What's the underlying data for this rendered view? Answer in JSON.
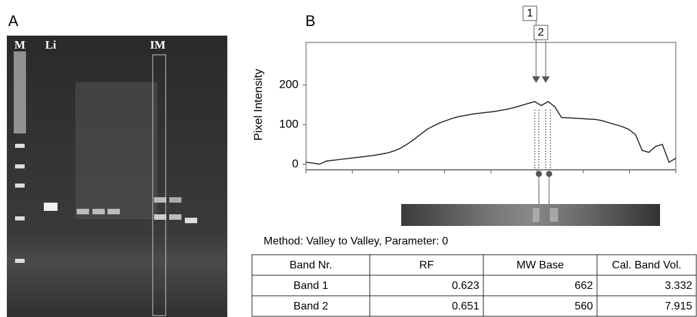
{
  "panel_a": {
    "label": "A",
    "lanes": [
      "M",
      "Li",
      "IM"
    ]
  },
  "chart_data": {
    "type": "line",
    "panel_label": "B",
    "y_label": "Pixel Intensity",
    "annotations": [
      "1",
      "2"
    ],
    "values": [
      5,
      3,
      0,
      8,
      10,
      12,
      14,
      16,
      18,
      20,
      22,
      25,
      28,
      33,
      40,
      50,
      62,
      75,
      88,
      97,
      105,
      111,
      117,
      121,
      124,
      127,
      129,
      131,
      133,
      136,
      139,
      143,
      148,
      153,
      158,
      148,
      158,
      145,
      118,
      117,
      116,
      115,
      114,
      113,
      110,
      105,
      100,
      95,
      88,
      75,
      35,
      30,
      45,
      50,
      5,
      15
    ],
    "color": "#222222",
    "ylim": [
      -14,
      307
    ],
    "yticks": [
      0,
      100,
      200
    ]
  },
  "method": "Method:  Valley to Valley, Parameter: 0",
  "table": {
    "header": [
      "Band Nr.",
      "RF",
      "MW Base",
      "Cal. Band Vol."
    ],
    "rows": [
      [
        "Band 1",
        "0.623",
        "662",
        "3.332"
      ],
      [
        "Band 2",
        "0.651",
        "560",
        "7.915"
      ]
    ]
  }
}
